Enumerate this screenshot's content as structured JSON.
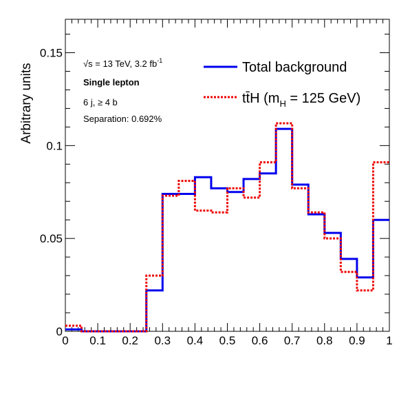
{
  "chart_data": {
    "type": "line",
    "ylabel": "Arbitrary units",
    "xlim": [
      0,
      1
    ],
    "ylim": [
      0,
      0.168
    ],
    "x_ticks": [
      "0",
      "0.1",
      "0.2",
      "0.3",
      "0.4",
      "0.5",
      "0.6",
      "0.7",
      "0.8",
      "0.9",
      "1"
    ],
    "y_ticks": [
      "0",
      "0.05",
      "0.1",
      "0.15"
    ],
    "bin_edges": [
      0,
      0.05,
      0.1,
      0.15,
      0.2,
      0.25,
      0.3,
      0.35,
      0.4,
      0.45,
      0.5,
      0.55,
      0.6,
      0.65,
      0.7,
      0.75,
      0.8,
      0.85,
      0.9,
      0.95,
      1.0
    ],
    "series": [
      {
        "name": "Total background",
        "color": "#0000ee",
        "style": "solid",
        "values": [
          0.001,
          0.0,
          0.0,
          0.0,
          0.0,
          0.022,
          0.074,
          0.074,
          0.083,
          0.077,
          0.075,
          0.082,
          0.085,
          0.109,
          0.079,
          0.063,
          0.053,
          0.039,
          0.029,
          0.06
        ]
      },
      {
        "name": "ttH (mH = 125 GeV)",
        "color": "#ee0000",
        "style": "dotted",
        "values": [
          0.003,
          0.0,
          0.0,
          0.0,
          0.0,
          0.03,
          0.073,
          0.081,
          0.065,
          0.064,
          0.077,
          0.072,
          0.091,
          0.112,
          0.077,
          0.064,
          0.05,
          0.032,
          0.022,
          0.091
        ]
      }
    ],
    "annotations": {
      "sqrt_s": "√s = 13 TeV, 3.2 fb",
      "lumi_superscript": "-1",
      "channel": "Single lepton",
      "region": "6 j, ≥ 4 b",
      "separation": "Separation: 0.692%"
    },
    "legend": {
      "placement": "top-right",
      "entries": [
        {
          "label": "Total background"
        },
        {
          "label_tt": "tt̄H (m",
          "label_sub": "H",
          "label_rest": " = 125 GeV)"
        }
      ]
    }
  }
}
